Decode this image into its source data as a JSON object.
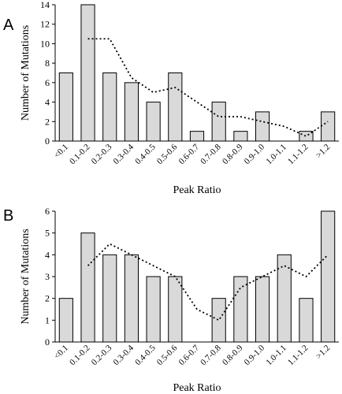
{
  "chart_data": [
    {
      "type": "bar",
      "panel": "A",
      "categories": [
        "<0.1",
        "0.1-0.2",
        "0.2-0.3",
        "0.3-0.4",
        "0.4-0.5",
        "0.5-0.6",
        "0.6-0.7",
        "0.7-0.8",
        "0.8-0.9",
        "0.9-1.0",
        "1.0-1.1",
        "1.1-1.2",
        ">1.2"
      ],
      "values": [
        7,
        14,
        7,
        6,
        4,
        7,
        1,
        4,
        1,
        3,
        0,
        1,
        3
      ],
      "trendline": {
        "style": "dotted",
        "start_category": "0.1-0.2",
        "values": [
          10.5,
          10.5,
          6.5,
          5,
          5.5,
          4,
          2.5,
          2.5,
          2,
          1.5,
          0.5,
          2
        ]
      },
      "title": "",
      "xlabel": "Peak Ratio",
      "ylabel": "Number of Mutations",
      "ylim": [
        0,
        14
      ],
      "yticks": [
        0,
        2,
        4,
        6,
        8,
        10,
        12,
        14
      ],
      "grid": false,
      "legend": "none"
    },
    {
      "type": "bar",
      "panel": "B",
      "categories": [
        "<0.1",
        "0.1-0.2",
        "0.2-0.3",
        "0.3-0.4",
        "0.4-0.5",
        "0.5-0.6",
        "0.6-0.7",
        "0.7-0.8",
        "0.8-0.9",
        "0.9-1.0",
        "1.0-1.1",
        "1.1-1.2",
        ">1.2"
      ],
      "values": [
        2,
        5,
        4,
        4,
        3,
        3,
        0,
        2,
        3,
        3,
        4,
        2,
        6
      ],
      "trendline": {
        "style": "dotted",
        "start_category": "0.1-0.2",
        "values": [
          3.5,
          4.5,
          4,
          3.5,
          3,
          1.5,
          1,
          2.5,
          3,
          3.5,
          3,
          4
        ]
      },
      "title": "",
      "xlabel": "Peak Ratio",
      "ylabel": "Number of Mutations",
      "ylim": [
        0,
        6
      ],
      "yticks": [
        0,
        1,
        2,
        3,
        4,
        5,
        6
      ],
      "grid": false,
      "legend": "none"
    }
  ]
}
